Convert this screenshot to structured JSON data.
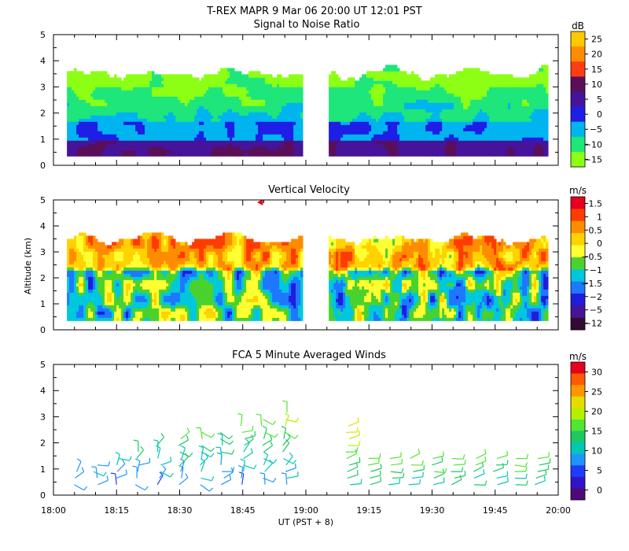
{
  "header": {
    "title": "T-REX   MAPR   9 Mar 06   20:00 UT   12:01   PST"
  },
  "x_axis": {
    "label": "UT  (PST + 8)",
    "ticks": [
      "18:00",
      "18:15",
      "18:30",
      "18:45",
      "19:00",
      "19:15",
      "19:30",
      "19:45",
      "20:00"
    ],
    "range_minutes": [
      0,
      120
    ]
  },
  "chart_data": [
    {
      "type": "heatmap",
      "title": "Signal to Noise Ratio",
      "ylabel": "",
      "ylim": [
        0,
        5
      ],
      "yticks": [
        "0",
        "1",
        "2",
        "3",
        "4",
        "5"
      ],
      "data_gap_minutes": [
        59.5,
        65.5
      ],
      "colorbar": {
        "unit": "dB",
        "labels": [
          "25",
          "20",
          "15",
          "10",
          "5",
          "0",
          "−5",
          "−10",
          "−15"
        ],
        "colors": [
          "#ffc800",
          "#ff8c00",
          "#ff3c14",
          "#5a0f5a",
          "#46149a",
          "#1e1ee6",
          "#00b4f0",
          "#1ee67a",
          "#8cff14"
        ]
      }
    },
    {
      "type": "heatmap",
      "title": "Vertical Velocity",
      "ylabel": "Altitude (km)",
      "ylim": [
        0,
        5
      ],
      "yticks": [
        "0",
        "1",
        "2",
        "3",
        "4",
        "5"
      ],
      "data_gap_minutes": [
        59.5,
        65.5
      ],
      "colorbar": {
        "unit": "m/s",
        "labels": [
          "1.5",
          "1",
          "0.5",
          "0",
          "−0.5",
          "−1",
          "−1.5",
          "−2",
          "−5",
          "−12"
        ],
        "colors": [
          "#e6001e",
          "#ff3c00",
          "#ff8c00",
          "#ffd200",
          "#ffff32",
          "#4bd22d",
          "#00c8dc",
          "#1e78ff",
          "#1e1edc",
          "#461496",
          "#320a32"
        ]
      }
    },
    {
      "type": "scatter",
      "title": "FCA 5 Minute Averaged Winds",
      "ylabel": "",
      "ylim": [
        0,
        5
      ],
      "yticks": [
        "0",
        "1",
        "2",
        "3",
        "4",
        "5"
      ],
      "profile_times_minutes": [
        5,
        10,
        15,
        20,
        25,
        30,
        35,
        40,
        45,
        50,
        55,
        70,
        75,
        80,
        85,
        90,
        95,
        100,
        105,
        110,
        115
      ],
      "colorbar": {
        "unit": "m/s",
        "labels": [
          "30",
          "25",
          "20",
          "15",
          "10",
          "5",
          "0"
        ],
        "colors": [
          "#e6001e",
          "#ff5a00",
          "#ff9600",
          "#e6dc00",
          "#b4f000",
          "#50e632",
          "#1ec864",
          "#00c8b4",
          "#1e96ff",
          "#1e3cff",
          "#3214c8",
          "#500a78"
        ]
      }
    }
  ]
}
